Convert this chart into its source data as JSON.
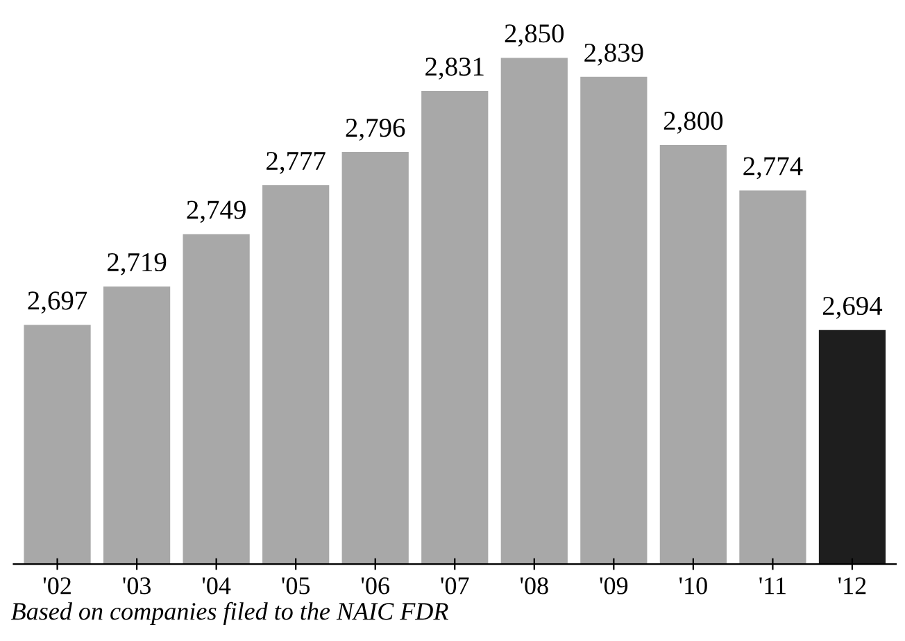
{
  "chart_data": {
    "type": "bar",
    "categories": [
      "'02",
      "'03",
      "'04",
      "'05",
      "'06",
      "'07",
      "'08",
      "'09",
      "'10",
      "'11",
      "'12"
    ],
    "values": [
      2697,
      2719,
      2749,
      2777,
      2796,
      2831,
      2850,
      2839,
      2800,
      2774,
      2694
    ],
    "colors": [
      "#a8a8a8",
      "#a8a8a8",
      "#a8a8a8",
      "#a8a8a8",
      "#a8a8a8",
      "#a8a8a8",
      "#a8a8a8",
      "#a8a8a8",
      "#a8a8a8",
      "#a8a8a8",
      "#1e1e1e"
    ],
    "value_labels": [
      "2,697",
      "2,719",
      "2,749",
      "2,777",
      "2,796",
      "2,831",
      "2,850",
      "2,839",
      "2,800",
      "2,774",
      "2,694"
    ],
    "ylim": [
      2560,
      2850
    ],
    "tick_labels": "x",
    "grid": false,
    "legend": false,
    "annotations": [
      "Based on companies filed to the NAIC FDR"
    ]
  }
}
